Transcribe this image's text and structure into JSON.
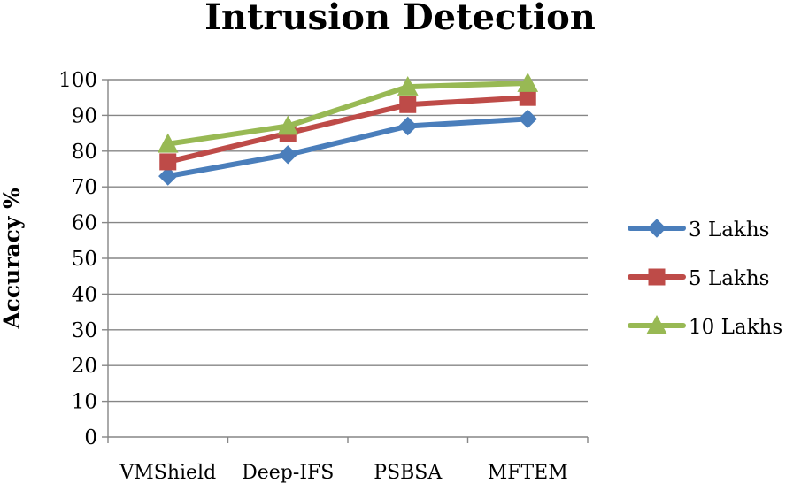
{
  "chart_data": {
    "type": "line",
    "title": "Intrusion Detection",
    "xlabel": "",
    "ylabel": "Accuracy %",
    "categories": [
      "VMShield",
      "Deep-IFS",
      "PSBSA",
      "MFTEM"
    ],
    "ylim": [
      0,
      100
    ],
    "yticks": [
      0,
      10,
      20,
      30,
      40,
      50,
      60,
      70,
      80,
      90,
      100
    ],
    "grid": true,
    "legend_position": "right",
    "series": [
      {
        "name": "3 Lakhs",
        "values": [
          73,
          79,
          87,
          89
        ],
        "color": "#4a7ebb",
        "marker": "diamond"
      },
      {
        "name": "5 Lakhs",
        "values": [
          77,
          85,
          93,
          95
        ],
        "color": "#be4b48",
        "marker": "square"
      },
      {
        "name": "10 Lakhs",
        "values": [
          82,
          87,
          98,
          99
        ],
        "color": "#98b954",
        "marker": "triangle"
      }
    ]
  }
}
